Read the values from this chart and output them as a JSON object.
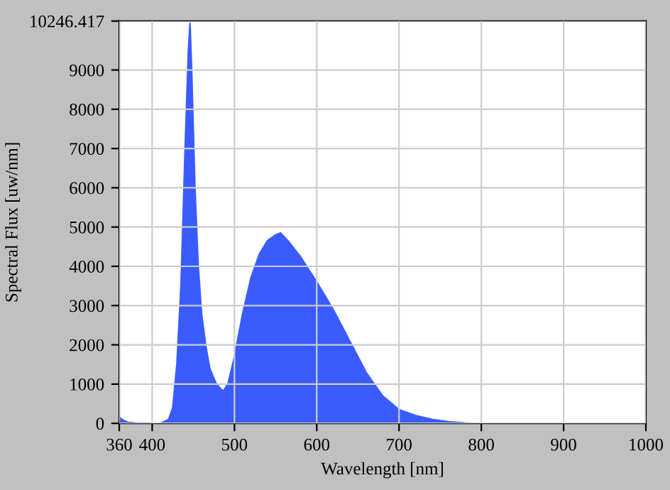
{
  "chart_data": {
    "type": "area",
    "xlabel": "Wavelength [nm]",
    "ylabel": "Spectral Flux [uw/nm]",
    "xlim": [
      360,
      1000
    ],
    "ylim": [
      0,
      10246.417
    ],
    "xticks": [
      360,
      400,
      500,
      600,
      700,
      800,
      900,
      1000
    ],
    "yticks": [
      0,
      1000,
      2000,
      3000,
      4000,
      5000,
      6000,
      7000,
      8000,
      9000,
      10246.417
    ],
    "grid": true,
    "series": [
      {
        "color": "#3a5cff",
        "x": [
          360,
          365,
          370,
          380,
          400,
          410,
          420,
          425,
          430,
          435,
          440,
          444,
          446,
          448,
          452,
          456,
          460,
          465,
          470,
          478,
          486,
          492,
          500,
          510,
          520,
          530,
          540,
          550,
          556,
          565,
          580,
          600,
          620,
          640,
          660,
          680,
          700,
          720,
          740,
          760,
          780,
          790,
          1000
        ],
        "values": [
          150,
          80,
          30,
          10,
          0,
          0,
          100,
          400,
          1500,
          3500,
          7000,
          9500,
          10200,
          9000,
          6000,
          4000,
          2800,
          2000,
          1400,
          1000,
          820,
          1000,
          1700,
          2800,
          3700,
          4300,
          4650,
          4800,
          4850,
          4650,
          4250,
          3600,
          2900,
          2100,
          1300,
          700,
          350,
          200,
          100,
          40,
          10,
          0,
          0
        ]
      }
    ]
  }
}
